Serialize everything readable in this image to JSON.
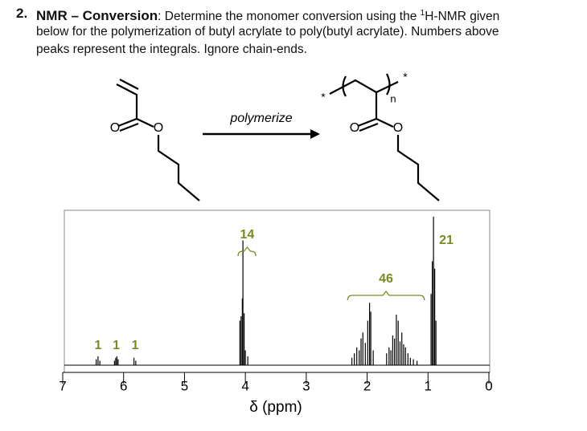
{
  "question": {
    "number": "2.",
    "title": "NMR – Conversion",
    "line1": ": Determine the monomer conversion using the ",
    "sup": "1",
    "line1_end": "H-NMR given",
    "line2": "below for the polymerization of butyl acrylate to poly(butyl acrylate). Numbers above",
    "line3": "peaks represent the integrals. Ignore chain-ends."
  },
  "scheme": {
    "arrow_label": "polymerize",
    "oxygen": "O",
    "star": "*",
    "repeat": "n"
  },
  "chart_data": {
    "type": "nmr",
    "xlabel": "δ (ppm)",
    "xlim": [
      7,
      0
    ],
    "xticks": [
      7,
      6,
      5,
      4,
      3,
      2,
      1,
      0
    ],
    "color": "#000000",
    "label_color": "#7a8a1e",
    "x": [
      6.45,
      6.42,
      6.39,
      6.15,
      6.13,
      6.11,
      6.09,
      5.83,
      5.8,
      4.09,
      4.07,
      4.05,
      4.04,
      4.02,
      4.0,
      3.96,
      2.25,
      2.21,
      2.17,
      2.13,
      2.1,
      2.07,
      2.03,
      1.99,
      1.96,
      1.94,
      1.9,
      1.68,
      1.64,
      1.61,
      1.58,
      1.55,
      1.52,
      1.49,
      1.46,
      1.43,
      1.4,
      1.37,
      1.33,
      1.29,
      1.24,
      1.18,
      0.95,
      0.93,
      0.91,
      0.89,
      0.87
    ],
    "values": [
      4,
      6,
      3,
      3,
      5,
      6,
      4,
      5,
      3,
      30,
      33,
      45,
      84,
      35,
      10,
      6,
      5,
      8,
      12,
      10,
      18,
      22,
      15,
      30,
      42,
      36,
      10,
      8,
      12,
      10,
      20,
      18,
      34,
      30,
      16,
      22,
      14,
      12,
      8,
      5,
      4,
      3,
      48,
      70,
      100,
      65,
      30
    ],
    "integrals": [
      {
        "value": 1,
        "ppm": 6.42
      },
      {
        "value": 1,
        "ppm": 6.12
      },
      {
        "value": 1,
        "ppm": 5.81
      },
      {
        "value": 14,
        "ppm": 3.97,
        "range": [
          4.12,
          3.83
        ]
      },
      {
        "value": 46,
        "ppm": 1.69,
        "range": [
          2.32,
          1.06
        ]
      },
      {
        "value": 21,
        "ppm": 0.7
      }
    ]
  }
}
